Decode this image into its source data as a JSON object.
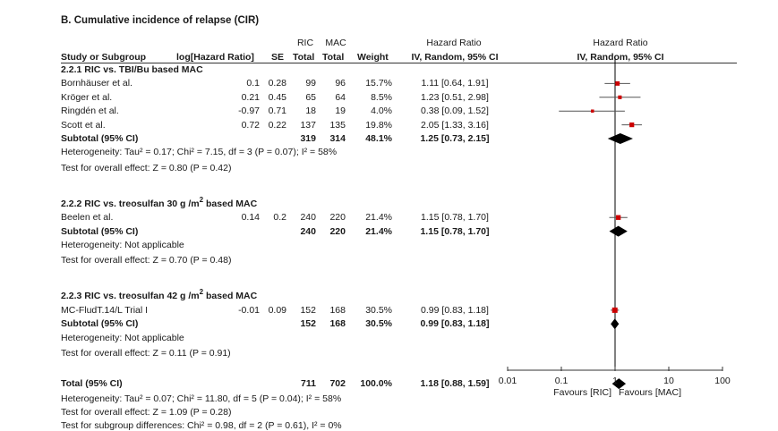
{
  "title": "B. Cumulative incidence of relapse (CIR)",
  "headers": {
    "ric": "RIC",
    "mac": "MAC",
    "hr_left": "Hazard Ratio",
    "hr_right": "Hazard Ratio",
    "study": "Study or Subgroup",
    "loghr": "log[Hazard Ratio]",
    "se": "SE",
    "total1": "Total",
    "total2": "Total",
    "weight": "Weight",
    "method_left": "IV, Random, 95% CI",
    "method_right": "IV, Random, 95% CI"
  },
  "groups": [
    {
      "heading": "2.2.1 RIC vs. TBI/Bu based MAC",
      "heading_sup": "",
      "heading_tail": "",
      "studies": [
        {
          "name": "Bornhäuser et al.",
          "loghr": "0.1",
          "se": "0.28",
          "ric": "99",
          "mac": "96",
          "weight": "15.7%",
          "ci": "1.11 [0.64, 1.91]"
        },
        {
          "name": "Kröger et al.",
          "loghr": "0.21",
          "se": "0.45",
          "ric": "65",
          "mac": "64",
          "weight": "8.5%",
          "ci": "1.23 [0.51, 2.98]"
        },
        {
          "name": "Ringdén et al.",
          "loghr": "-0.97",
          "se": "0.71",
          "ric": "18",
          "mac": "19",
          "weight": "4.0%",
          "ci": "0.38 [0.09, 1.52]"
        },
        {
          "name": "Scott et al.",
          "loghr": "0.72",
          "se": "0.22",
          "ric": "137",
          "mac": "135",
          "weight": "19.8%",
          "ci": "2.05 [1.33, 3.16]"
        }
      ],
      "subtotal": {
        "label": "Subtotal (95% CI)",
        "ric": "319",
        "mac": "314",
        "weight": "48.1%",
        "ci": "1.25 [0.73, 2.15]"
      },
      "het": "Heterogeneity: Tau² = 0.17; Chi² = 7.15, df = 3 (P = 0.07); I² = 58%",
      "overall": "Test for overall effect: Z = 0.80 (P = 0.42)"
    },
    {
      "heading": "2.2.2 RIC vs. treosulfan 30 g /m",
      "heading_sup": "2",
      "heading_tail": " based MAC",
      "studies": [
        {
          "name": "Beelen et al.",
          "loghr": "0.14",
          "se": "0.2",
          "ric": "240",
          "mac": "220",
          "weight": "21.4%",
          "ci": "1.15 [0.78, 1.70]"
        }
      ],
      "subtotal": {
        "label": "Subtotal (95% CI)",
        "ric": "240",
        "mac": "220",
        "weight": "21.4%",
        "ci": "1.15 [0.78, 1.70]"
      },
      "het": "Heterogeneity: Not applicable",
      "overall": "Test for overall effect: Z = 0.70 (P = 0.48)"
    },
    {
      "heading": "2.2.3 RIC vs. treosulfan 42 g /m",
      "heading_sup": "2",
      "heading_tail": " based MAC",
      "studies": [
        {
          "name": "MC-FludT.14/L Trial I",
          "loghr": "-0.01",
          "se": "0.09",
          "ric": "152",
          "mac": "168",
          "weight": "30.5%",
          "ci": "0.99 [0.83, 1.18]"
        }
      ],
      "subtotal": {
        "label": "Subtotal (95% CI)",
        "ric": "152",
        "mac": "168",
        "weight": "30.5%",
        "ci": "0.99 [0.83, 1.18]"
      },
      "het": "Heterogeneity: Not applicable",
      "overall": "Test for overall effect: Z = 0.11 (P = 0.91)"
    }
  ],
  "total": {
    "label": "Total (95% CI)",
    "ric": "711",
    "mac": "702",
    "weight": "100.0%",
    "ci": "1.18 [0.88, 1.59]"
  },
  "footer": [
    "Heterogeneity: Tau² = 0.07; Chi² = 11.80, df = 5 (P = 0.04); I² = 58%",
    "Test for overall effect: Z = 1.09 (P = 0.28)",
    "Test for subgroup differences: Chi² = 0.98, df = 2 (P = 0.61), I² = 0%"
  ],
  "axis": {
    "ticks": [
      "0.01",
      "0.1",
      "1",
      "10",
      "100"
    ],
    "favours_left": "Favours [RIC]",
    "favours_right": "Favours [MAC]"
  },
  "colors": {
    "marker": "#cc0000",
    "diamond": "#000000",
    "line": "#555555"
  },
  "chart_data": {
    "type": "scatter",
    "subtype": "forest-plot",
    "scale": "log",
    "xlim": [
      0.01,
      100
    ],
    "studies": [
      {
        "name": "Bornhäuser et al.",
        "hr": 1.11,
        "lo": 0.64,
        "hi": 1.91,
        "weight": 15.7
      },
      {
        "name": "Kröger et al.",
        "hr": 1.23,
        "lo": 0.51,
        "hi": 2.98,
        "weight": 8.5
      },
      {
        "name": "Ringdén et al.",
        "hr": 0.38,
        "lo": 0.09,
        "hi": 1.52,
        "weight": 4.0
      },
      {
        "name": "Scott et al.",
        "hr": 2.05,
        "lo": 1.33,
        "hi": 3.16,
        "weight": 19.8
      },
      {
        "name": "Beelen et al.",
        "hr": 1.15,
        "lo": 0.78,
        "hi": 1.7,
        "weight": 21.4
      },
      {
        "name": "MC-FludT.14/L Trial I",
        "hr": 0.99,
        "lo": 0.83,
        "hi": 1.18,
        "weight": 30.5
      }
    ],
    "subtotals": [
      {
        "label": "2.2.1",
        "hr": 1.25,
        "lo": 0.73,
        "hi": 2.15
      },
      {
        "label": "2.2.2",
        "hr": 1.15,
        "lo": 0.78,
        "hi": 1.7
      },
      {
        "label": "2.2.3",
        "hr": 0.99,
        "lo": 0.83,
        "hi": 1.18
      }
    ],
    "total": {
      "hr": 1.18,
      "lo": 0.88,
      "hi": 1.59
    }
  }
}
